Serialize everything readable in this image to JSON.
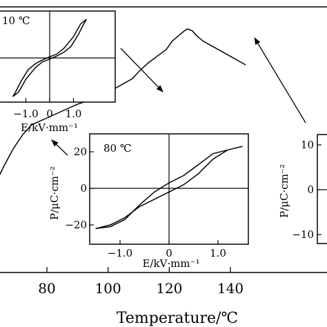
{
  "chart_data": [
    {
      "type": "line",
      "xlabel": "Temperature/℃",
      "x_ticks": [
        "80",
        "100",
        "120",
        "140"
      ],
      "xlim": [
        60,
        145
      ],
      "series": [
        {
          "x": [
            60,
            63,
            66,
            69,
            72,
            75,
            80,
            85,
            90,
            95,
            100,
            103,
            106,
            108,
            110,
            113,
            116,
            119,
            121,
            123,
            125,
            126,
            127.5,
            129,
            131,
            134,
            137,
            140,
            143,
            145
          ],
          "y": [
            0.0,
            0.09,
            0.2,
            0.3,
            0.38,
            0.44,
            0.48,
            0.52,
            0.56,
            0.59,
            0.63,
            0.66,
            0.69,
            0.71,
            0.75,
            0.8,
            0.84,
            0.88,
            0.93,
            0.96,
            0.99,
            1.0,
            0.99,
            0.96,
            0.93,
            0.9,
            0.87,
            0.84,
            0.81,
            0.79
          ]
        }
      ]
    },
    {
      "type": "line",
      "annotation": "10 ℃",
      "xlabel": "E/kV·mm⁻¹",
      "x_ticks": [
        "−1.0",
        "0",
        "1.0"
      ],
      "xlim": [
        -1.7,
        1.7
      ],
      "series": [
        {
          "x": [
            -1.55,
            -1.3,
            -1.0,
            -0.6,
            -0.3,
            0.0,
            0.3,
            0.6,
            0.9,
            1.2,
            1.45,
            1.55
          ],
          "y": [
            -1.0,
            -0.88,
            -0.55,
            -0.25,
            -0.1,
            -0.03,
            0.05,
            0.15,
            0.3,
            0.6,
            0.9,
            1.0
          ]
        },
        {
          "x": [
            1.55,
            1.3,
            1.0,
            0.6,
            0.3,
            0.0,
            -0.3,
            -0.6,
            -0.9,
            -1.2,
            -1.45,
            -1.55
          ],
          "y": [
            1.0,
            0.88,
            0.55,
            0.25,
            0.1,
            0.03,
            -0.05,
            -0.15,
            -0.3,
            -0.6,
            -0.9,
            -1.0
          ]
        }
      ]
    },
    {
      "type": "line",
      "annotation": "80 ℃",
      "xlabel": "E/kV·mm⁻¹",
      "ylabel": "P/μC·cm⁻²",
      "x_ticks": [
        "−1.0",
        "0",
        "1.0"
      ],
      "y_ticks": [
        "20",
        "0",
        "−20"
      ],
      "xlim": [
        -1.7,
        1.7
      ],
      "ylim": [
        -30,
        30
      ],
      "series": [
        {
          "x": [
            -1.5,
            -1.2,
            -0.9,
            -0.6,
            -0.3,
            0.0,
            0.3,
            0.6,
            0.9,
            1.2,
            1.5
          ],
          "y": [
            -22,
            -20,
            -16,
            -10,
            -6,
            -2,
            2,
            8,
            16,
            21,
            23
          ]
        },
        {
          "x": [
            1.5,
            1.2,
            0.9,
            0.6,
            0.3,
            0.0,
            -0.3,
            -0.6,
            -0.9,
            -1.2,
            -1.5
          ],
          "y": [
            23,
            21,
            19,
            13,
            7,
            3,
            -2,
            -9,
            -17,
            -21,
            -22
          ]
        }
      ]
    },
    {
      "type": "line",
      "ylabel": "P/μC·cm⁻²",
      "y_ticks": [
        "10",
        "0",
        "−10"
      ],
      "ylim": [
        -13,
        13
      ]
    }
  ]
}
